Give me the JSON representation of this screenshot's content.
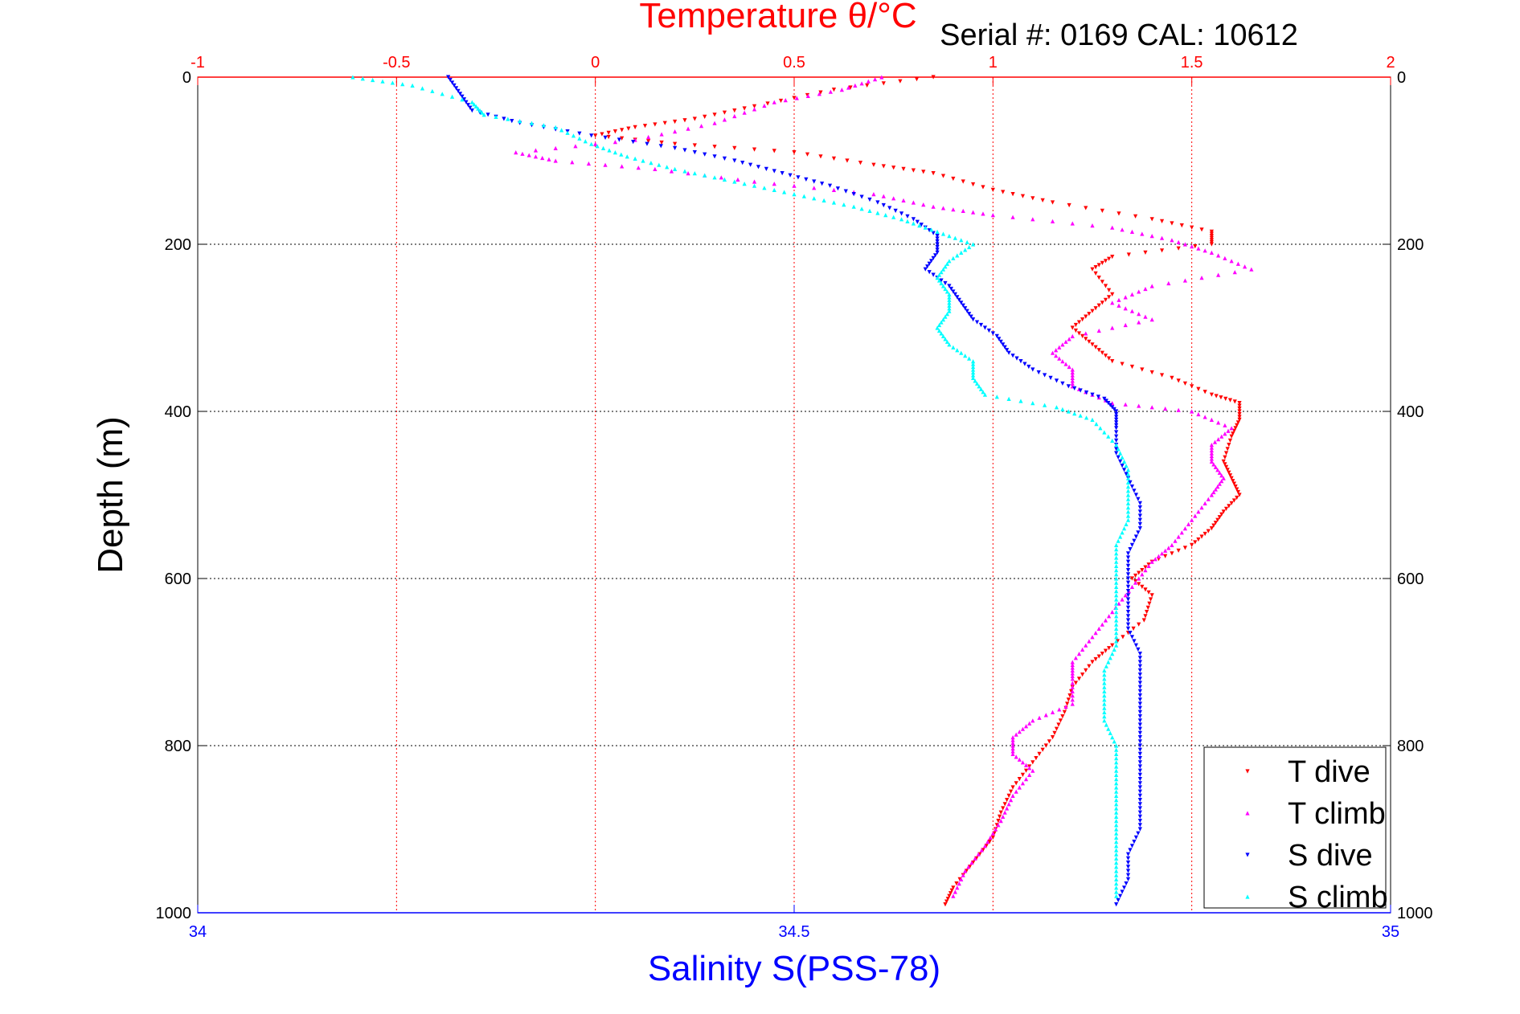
{
  "chart_data": {
    "type": "scatter",
    "title": "Temperature θ/°C",
    "subtitle": "Serial #: 0169 CAL: 10612",
    "xlabel": "Salinity S(PSS-78)",
    "ylabel": "Depth (m)",
    "x_top": {
      "label": "Temperature θ/°C",
      "range": [
        -1,
        2
      ],
      "ticks": [
        "-1",
        "-0.5",
        "0",
        "0.5",
        "1",
        "1.5",
        "2"
      ],
      "color": "#ff0000"
    },
    "x_bottom": {
      "label": "Salinity S(PSS-78)",
      "range": [
        34,
        35
      ],
      "ticks": [
        "34",
        "34.5",
        "35"
      ],
      "color": "#0000ff"
    },
    "y": {
      "range": [
        0,
        1000
      ],
      "reversed": true,
      "ticks": [
        "0",
        "200",
        "400",
        "600",
        "800",
        "1000"
      ]
    },
    "grid": true,
    "legend_position": "bottom-right",
    "series": [
      {
        "name": "T dive",
        "axis": "top",
        "color": "#ff0000",
        "marker": "triangle-down",
        "points": [
          [
            0.85,
            0
          ],
          [
            0.6,
            15
          ],
          [
            0.4,
            35
          ],
          [
            0.25,
            50
          ],
          [
            0.1,
            60
          ],
          [
            0,
            70
          ],
          [
            0.2,
            80
          ],
          [
            0.5,
            90
          ],
          [
            0.7,
            105
          ],
          [
            0.85,
            115
          ],
          [
            1,
            135
          ],
          [
            1.15,
            150
          ],
          [
            1.4,
            170
          ],
          [
            1.55,
            185
          ],
          [
            1.55,
            200
          ],
          [
            1.3,
            215
          ],
          [
            1.25,
            230
          ],
          [
            1.3,
            260
          ],
          [
            1.25,
            280
          ],
          [
            1.2,
            300
          ],
          [
            1.25,
            320
          ],
          [
            1.3,
            340
          ],
          [
            1.45,
            360
          ],
          [
            1.55,
            380
          ],
          [
            1.62,
            390
          ],
          [
            1.62,
            410
          ],
          [
            1.6,
            430
          ],
          [
            1.58,
            460
          ],
          [
            1.6,
            480
          ],
          [
            1.62,
            500
          ],
          [
            1.58,
            520
          ],
          [
            1.55,
            540
          ],
          [
            1.5,
            560
          ],
          [
            1.4,
            580
          ],
          [
            1.35,
            600
          ],
          [
            1.4,
            620
          ],
          [
            1.38,
            650
          ],
          [
            1.3,
            680
          ],
          [
            1.25,
            700
          ],
          [
            1.2,
            730
          ],
          [
            1.18,
            760
          ],
          [
            1.15,
            790
          ],
          [
            1.1,
            820
          ],
          [
            1.05,
            850
          ],
          [
            1.02,
            880
          ],
          [
            1,
            910
          ],
          [
            0.95,
            940
          ],
          [
            0.9,
            970
          ],
          [
            0.88,
            990
          ]
        ]
      },
      {
        "name": "T climb",
        "axis": "top",
        "color": "#ff00ff",
        "marker": "triangle-up",
        "points": [
          [
            0.72,
            0
          ],
          [
            0.62,
            15
          ],
          [
            0.45,
            30
          ],
          [
            0.3,
            55
          ],
          [
            0.1,
            75
          ],
          [
            -0.2,
            90
          ],
          [
            -0.1,
            100
          ],
          [
            0.15,
            110
          ],
          [
            0.4,
            125
          ],
          [
            0.7,
            140
          ],
          [
            0.85,
            155
          ],
          [
            1,
            165
          ],
          [
            1.3,
            180
          ],
          [
            1.45,
            195
          ],
          [
            1.55,
            210
          ],
          [
            1.65,
            230
          ],
          [
            1.4,
            250
          ],
          [
            1.3,
            270
          ],
          [
            1.4,
            290
          ],
          [
            1.2,
            310
          ],
          [
            1.15,
            330
          ],
          [
            1.2,
            350
          ],
          [
            1.2,
            370
          ],
          [
            1.3,
            390
          ],
          [
            1.5,
            400
          ],
          [
            1.6,
            420
          ],
          [
            1.55,
            440
          ],
          [
            1.55,
            460
          ],
          [
            1.58,
            480
          ],
          [
            1.55,
            500
          ],
          [
            1.5,
            530
          ],
          [
            1.45,
            560
          ],
          [
            1.4,
            580
          ],
          [
            1.35,
            610
          ],
          [
            1.3,
            640
          ],
          [
            1.25,
            670
          ],
          [
            1.2,
            700
          ],
          [
            1.2,
            720
          ],
          [
            1.2,
            750
          ],
          [
            1.1,
            770
          ],
          [
            1.05,
            790
          ],
          [
            1.05,
            810
          ],
          [
            1.1,
            830
          ],
          [
            1.05,
            860
          ],
          [
            1.02,
            890
          ],
          [
            0.98,
            920
          ],
          [
            0.93,
            950
          ],
          [
            0.9,
            980
          ]
        ]
      },
      {
        "name": "S dive",
        "axis": "bottom",
        "color": "#0000ff",
        "marker": "triangle-down",
        "points": [
          [
            34.21,
            0
          ],
          [
            34.22,
            20
          ],
          [
            34.23,
            40
          ],
          [
            34.27,
            55
          ],
          [
            34.33,
            70
          ],
          [
            34.4,
            85
          ],
          [
            34.45,
            100
          ],
          [
            34.49,
            115
          ],
          [
            34.53,
            130
          ],
          [
            34.57,
            150
          ],
          [
            34.6,
            170
          ],
          [
            34.62,
            190
          ],
          [
            34.62,
            210
          ],
          [
            34.61,
            230
          ],
          [
            34.63,
            250
          ],
          [
            34.64,
            270
          ],
          [
            34.65,
            290
          ],
          [
            34.67,
            310
          ],
          [
            34.68,
            330
          ],
          [
            34.7,
            350
          ],
          [
            34.73,
            370
          ],
          [
            34.76,
            385
          ],
          [
            34.77,
            400
          ],
          [
            34.77,
            420
          ],
          [
            34.77,
            450
          ],
          [
            34.78,
            480
          ],
          [
            34.79,
            510
          ],
          [
            34.79,
            540
          ],
          [
            34.78,
            570
          ],
          [
            34.78,
            600
          ],
          [
            34.78,
            630
          ],
          [
            34.78,
            660
          ],
          [
            34.79,
            690
          ],
          [
            34.79,
            720
          ],
          [
            34.79,
            750
          ],
          [
            34.79,
            780
          ],
          [
            34.79,
            810
          ],
          [
            34.79,
            840
          ],
          [
            34.79,
            870
          ],
          [
            34.79,
            900
          ],
          [
            34.78,
            930
          ],
          [
            34.78,
            960
          ],
          [
            34.77,
            990
          ]
        ]
      },
      {
        "name": "S climb",
        "axis": "bottom",
        "color": "#00ffff",
        "marker": "triangle-up",
        "points": [
          [
            34.13,
            0
          ],
          [
            34.18,
            10
          ],
          [
            34.23,
            30
          ],
          [
            34.24,
            45
          ],
          [
            34.3,
            60
          ],
          [
            34.33,
            80
          ],
          [
            34.36,
            95
          ],
          [
            34.4,
            110
          ],
          [
            34.45,
            125
          ],
          [
            34.5,
            140
          ],
          [
            34.55,
            155
          ],
          [
            34.59,
            170
          ],
          [
            34.62,
            185
          ],
          [
            34.65,
            200
          ],
          [
            34.63,
            220
          ],
          [
            34.62,
            240
          ],
          [
            34.63,
            260
          ],
          [
            34.63,
            280
          ],
          [
            34.62,
            300
          ],
          [
            34.63,
            320
          ],
          [
            34.65,
            340
          ],
          [
            34.65,
            360
          ],
          [
            34.66,
            380
          ],
          [
            34.72,
            395
          ],
          [
            34.75,
            410
          ],
          [
            34.77,
            440
          ],
          [
            34.78,
            470
          ],
          [
            34.78,
            500
          ],
          [
            34.78,
            530
          ],
          [
            34.77,
            560
          ],
          [
            34.77,
            590
          ],
          [
            34.77,
            620
          ],
          [
            34.77,
            650
          ],
          [
            34.77,
            680
          ],
          [
            34.76,
            710
          ],
          [
            34.76,
            740
          ],
          [
            34.76,
            770
          ],
          [
            34.77,
            800
          ],
          [
            34.77,
            830
          ],
          [
            34.77,
            860
          ],
          [
            34.77,
            890
          ],
          [
            34.77,
            920
          ],
          [
            34.77,
            950
          ],
          [
            34.77,
            980
          ]
        ]
      }
    ]
  }
}
